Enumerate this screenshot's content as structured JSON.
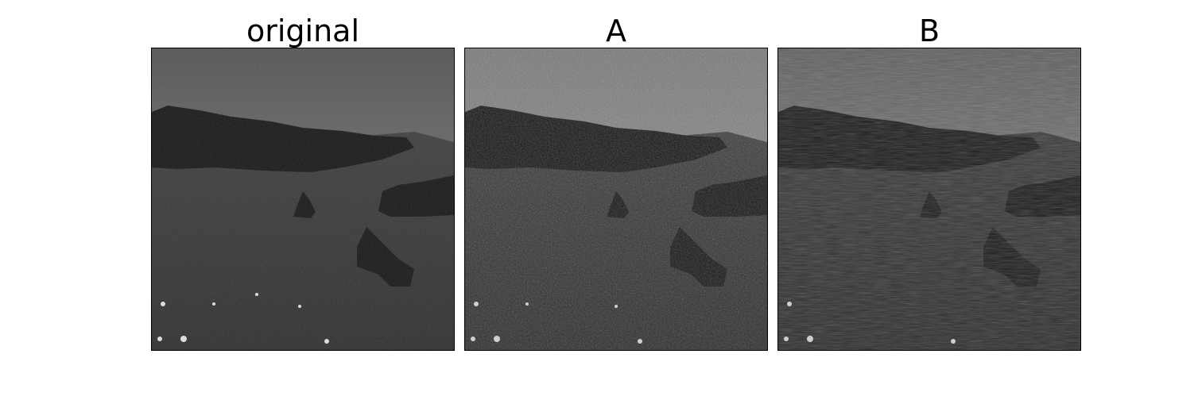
{
  "panels": [
    {
      "title": "original"
    },
    {
      "title": "A"
    },
    {
      "title": "B"
    }
  ]
}
